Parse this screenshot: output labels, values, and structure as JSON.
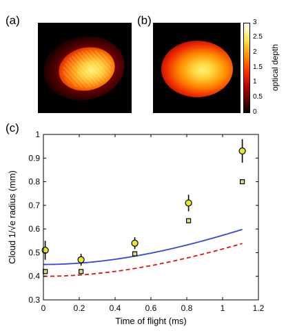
{
  "panels": {
    "a": "(a)",
    "b": "(b)",
    "c": "(c)"
  },
  "colorbar": {
    "label": "optical depth",
    "ticks": [
      "3",
      "2.5",
      "2",
      "1.5",
      "1",
      "0.5",
      "0"
    ],
    "colormap": [
      "#000000",
      "#5a0000",
      "#b40000",
      "#ff2a00",
      "#ff8c00",
      "#ffe650",
      "#ffffff"
    ]
  },
  "colors": {
    "model_blue": "#3344dd",
    "model_red": "#dd1111",
    "marker_circle": "#e6e62a",
    "marker_square": "#dcdc78"
  },
  "chart_data": {
    "type": "scatter",
    "xlabel": "Time of flight (ms)",
    "ylabel": "Cloud 1/√e radius (mm)",
    "xlim": [
      0,
      1.2
    ],
    "ylim": [
      0.3,
      1.0
    ],
    "xticks": [
      0,
      0.2,
      0.4,
      0.6,
      0.8,
      1,
      1.2
    ],
    "yticks": [
      0.3,
      0.4,
      0.5,
      0.6,
      0.7,
      0.8,
      0.9,
      1.0
    ],
    "xtick_labels": [
      "0",
      "0.2",
      "0.4",
      "0.6",
      "0.8",
      "1",
      "1.2"
    ],
    "ytick_labels": [
      "0.3",
      "0.4",
      "0.5",
      "0.6",
      "0.7",
      "0.8",
      "0.9",
      "1"
    ],
    "series": [
      {
        "marker": "circle",
        "x": [
          0.01,
          0.21,
          0.51,
          0.81,
          1.11
        ],
        "y": [
          0.51,
          0.47,
          0.54,
          0.71,
          0.93
        ],
        "err": [
          0.04,
          0.025,
          0.025,
          0.035,
          0.05
        ]
      },
      {
        "marker": "square",
        "x": [
          0.01,
          0.21,
          0.51,
          0.81,
          1.11
        ],
        "y": [
          0.42,
          0.42,
          0.495,
          0.635,
          0.8
        ],
        "err": [
          0.01,
          0.01,
          0.01,
          0.01,
          0.01
        ]
      }
    ],
    "fits": [
      {
        "style": "solid",
        "color": "blue",
        "x0": 0.45,
        "a": 0.355,
        "range": [
          0,
          1.11
        ]
      },
      {
        "style": "dashed",
        "color": "red",
        "x0": 0.4,
        "a": 0.325,
        "range": [
          0,
          1.11
        ]
      }
    ]
  }
}
